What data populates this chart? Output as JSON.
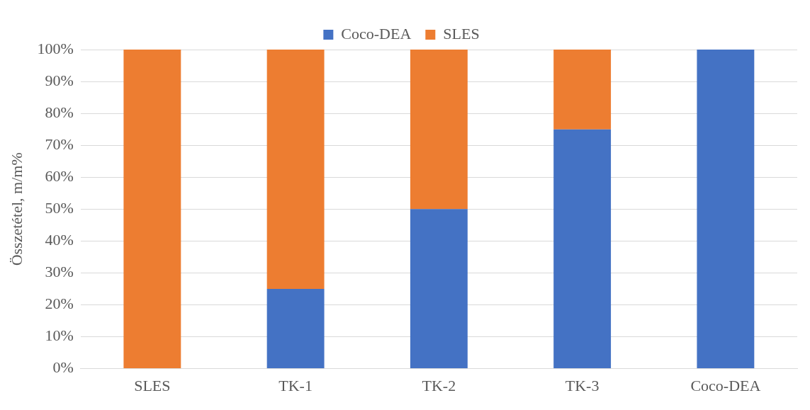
{
  "chart_data": {
    "type": "bar",
    "stacked": true,
    "ylabel": "Összetétel, m/m%",
    "categories": [
      "SLES",
      "TK-1",
      "TK-2",
      "TK-3",
      "Coco-DEA"
    ],
    "series": [
      {
        "name": "Coco-DEA",
        "color": "#4472c4",
        "values": [
          0,
          25,
          50,
          75,
          100
        ]
      },
      {
        "name": "SLES",
        "color": "#ed7d31",
        "values": [
          100,
          75,
          50,
          25,
          0
        ]
      }
    ],
    "ylim": [
      0,
      100
    ],
    "yticks": [
      {
        "value": 0,
        "label": "0%"
      },
      {
        "value": 10,
        "label": "10%"
      },
      {
        "value": 20,
        "label": "20%"
      },
      {
        "value": 30,
        "label": "30%"
      },
      {
        "value": 40,
        "label": "40%"
      },
      {
        "value": 50,
        "label": "50%"
      },
      {
        "value": 60,
        "label": "60%"
      },
      {
        "value": 70,
        "label": "70%"
      },
      {
        "value": 80,
        "label": "80%"
      },
      {
        "value": 90,
        "label": "90%"
      },
      {
        "value": 100,
        "label": "100%"
      }
    ],
    "grid": "y",
    "legend": "top"
  }
}
